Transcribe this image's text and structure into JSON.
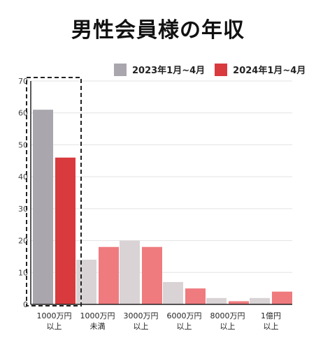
{
  "chart_data": {
    "type": "bar",
    "title": "男性会員様の年収",
    "categories": [
      [
        "1000万円",
        "以上"
      ],
      [
        "1000万円",
        "未満"
      ],
      [
        "3000万円",
        "以上"
      ],
      [
        "6000万円",
        "以上"
      ],
      [
        "8000万円",
        "以上"
      ],
      [
        "1億円",
        "以上"
      ]
    ],
    "series": [
      {
        "name": "2023年1月~4月",
        "values": [
          61,
          14,
          20,
          7,
          2,
          2
        ]
      },
      {
        "name": "2024年1月~4月",
        "values": [
          46,
          18,
          18,
          5,
          1,
          4
        ]
      }
    ],
    "ylim": [
      0,
      70
    ],
    "yticks": [
      0,
      10,
      20,
      30,
      40,
      50,
      60,
      70
    ],
    "grid": true,
    "legend_position": "top-right",
    "highlight_group": 0,
    "colors": {
      "series_highlight": [
        "#a9a6ad",
        "#d93a3e"
      ],
      "series_muted": [
        "#d9d3d5",
        "#ef7b7f"
      ],
      "grid": "#e3e3e3",
      "axis": "#222222",
      "highlight_box": "#222222"
    }
  }
}
